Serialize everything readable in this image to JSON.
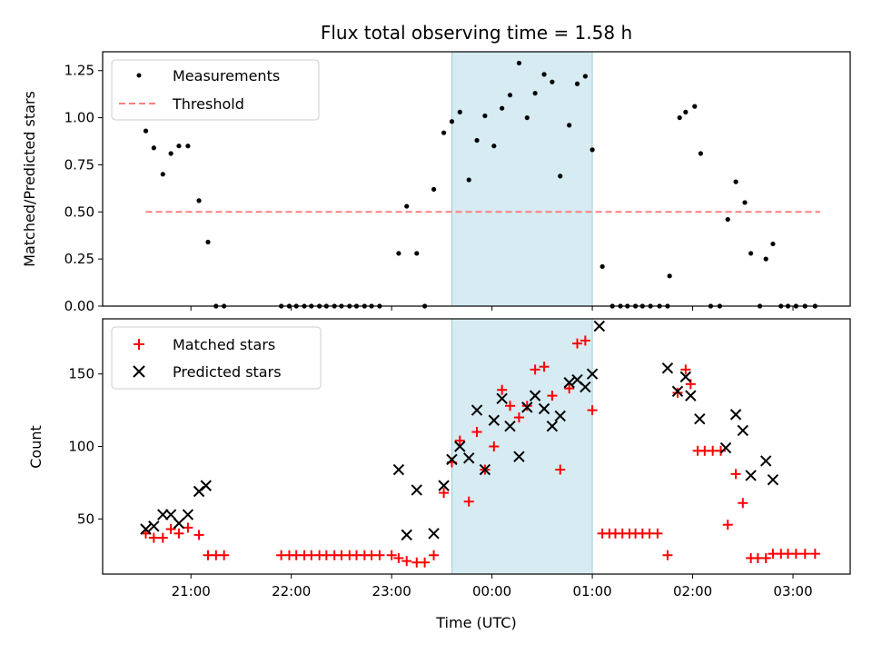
{
  "chart_data": [
    {
      "type": "scatter",
      "title": "Flux total observing time = 1.58 h",
      "xlabel": "",
      "ylabel": "Matched/Predicted stars",
      "ylim": [
        0,
        1.35
      ],
      "xlim": [
        20.12,
        27.57
      ],
      "yticks": [
        "0.00",
        "0.25",
        "0.50",
        "0.75",
        "1.00",
        "1.25"
      ],
      "legend": {
        "placement": "top-left",
        "entries": [
          "Measurements",
          "Threshold"
        ]
      },
      "shaded_interval": [
        23.6,
        25.0
      ],
      "threshold": {
        "y": 0.5,
        "x": [
          20.55,
          27.27
        ],
        "color": "#ff7f7f"
      },
      "series": [
        {
          "name": "Measurements",
          "color": "#000000",
          "points": [
            [
              20.55,
              0.93
            ],
            [
              20.63,
              0.84
            ],
            [
              20.72,
              0.7
            ],
            [
              20.8,
              0.81
            ],
            [
              20.88,
              0.85
            ],
            [
              20.97,
              0.85
            ],
            [
              21.08,
              0.56
            ],
            [
              21.17,
              0.34
            ],
            [
              21.25,
              0
            ],
            [
              21.33,
              0
            ],
            [
              21.9,
              0
            ],
            [
              21.98,
              0
            ],
            [
              22.05,
              0
            ],
            [
              22.13,
              0
            ],
            [
              22.2,
              0
            ],
            [
              22.28,
              0
            ],
            [
              22.35,
              0
            ],
            [
              22.43,
              0
            ],
            [
              22.5,
              0
            ],
            [
              22.58,
              0
            ],
            [
              22.65,
              0
            ],
            [
              22.73,
              0
            ],
            [
              22.8,
              0
            ],
            [
              22.88,
              0
            ],
            [
              23.07,
              0.28
            ],
            [
              23.15,
              0.53
            ],
            [
              23.25,
              0.28
            ],
            [
              23.33,
              0
            ],
            [
              23.42,
              0.62
            ],
            [
              23.52,
              0.92
            ],
            [
              23.6,
              0.98
            ],
            [
              23.68,
              1.03
            ],
            [
              23.77,
              0.67
            ],
            [
              23.85,
              0.88
            ],
            [
              23.93,
              1.01
            ],
            [
              24.02,
              0.85
            ],
            [
              24.1,
              1.05
            ],
            [
              24.18,
              1.12
            ],
            [
              24.27,
              1.29
            ],
            [
              24.35,
              1.0
            ],
            [
              24.43,
              1.13
            ],
            [
              24.52,
              1.23
            ],
            [
              24.6,
              1.19
            ],
            [
              24.68,
              0.69
            ],
            [
              24.77,
              0.96
            ],
            [
              24.85,
              1.18
            ],
            [
              24.93,
              1.22
            ],
            [
              25.0,
              0.83
            ],
            [
              25.1,
              0.21
            ],
            [
              25.2,
              0
            ],
            [
              25.28,
              0
            ],
            [
              25.35,
              0
            ],
            [
              25.43,
              0
            ],
            [
              25.5,
              0
            ],
            [
              25.58,
              0
            ],
            [
              25.67,
              0
            ],
            [
              25.75,
              0
            ],
            [
              25.77,
              0.16
            ],
            [
              25.87,
              1.0
            ],
            [
              25.93,
              1.03
            ],
            [
              26.02,
              1.06
            ],
            [
              26.08,
              0.81
            ],
            [
              26.18,
              0
            ],
            [
              26.27,
              0
            ],
            [
              26.35,
              0.46
            ],
            [
              26.43,
              0.66
            ],
            [
              26.52,
              0.55
            ],
            [
              26.58,
              0.28
            ],
            [
              26.67,
              0
            ],
            [
              26.73,
              0.25
            ],
            [
              26.8,
              0.33
            ],
            [
              26.88,
              0
            ],
            [
              26.95,
              0
            ],
            [
              27.03,
              0
            ],
            [
              27.12,
              0
            ],
            [
              27.22,
              0
            ]
          ]
        }
      ]
    },
    {
      "type": "scatter",
      "title": "",
      "xlabel": "Time (UTC)",
      "ylabel": "Count",
      "ylim": [
        12,
        188
      ],
      "xlim": [
        20.12,
        27.57
      ],
      "yticks": [
        "50",
        "100",
        "150"
      ],
      "xticks": [
        "21:00",
        "22:00",
        "23:00",
        "00:00",
        "01:00",
        "02:00",
        "03:00"
      ],
      "legend": {
        "placement": "top-left",
        "entries": [
          "Matched stars",
          "Predicted stars"
        ]
      },
      "shaded_interval": [
        23.6,
        25.0
      ],
      "series": [
        {
          "name": "Matched stars",
          "marker": "+",
          "color": "#ff0000",
          "points": [
            [
              20.55,
              40
            ],
            [
              20.63,
              37
            ],
            [
              20.72,
              37
            ],
            [
              20.8,
              43
            ],
            [
              20.88,
              40
            ],
            [
              20.97,
              44
            ],
            [
              21.08,
              39
            ],
            [
              21.17,
              25
            ],
            [
              21.25,
              25
            ],
            [
              21.33,
              25
            ],
            [
              21.9,
              25
            ],
            [
              21.98,
              25
            ],
            [
              22.05,
              25
            ],
            [
              22.13,
              25
            ],
            [
              22.2,
              25
            ],
            [
              22.28,
              25
            ],
            [
              22.35,
              25
            ],
            [
              22.43,
              25
            ],
            [
              22.5,
              25
            ],
            [
              22.58,
              25
            ],
            [
              22.65,
              25
            ],
            [
              22.73,
              25
            ],
            [
              22.8,
              25
            ],
            [
              22.88,
              25
            ],
            [
              23.0,
              25
            ],
            [
              23.07,
              23
            ],
            [
              23.15,
              21
            ],
            [
              23.25,
              20
            ],
            [
              23.33,
              20
            ],
            [
              23.42,
              25
            ],
            [
              23.52,
              68
            ],
            [
              23.6,
              89
            ],
            [
              23.68,
              104
            ],
            [
              23.77,
              62
            ],
            [
              23.85,
              110
            ],
            [
              23.93,
              84
            ],
            [
              24.02,
              100
            ],
            [
              24.1,
              139
            ],
            [
              24.18,
              128
            ],
            [
              24.27,
              120
            ],
            [
              24.35,
              128
            ],
            [
              24.43,
              153
            ],
            [
              24.52,
              155
            ],
            [
              24.6,
              135
            ],
            [
              24.68,
              84
            ],
            [
              24.77,
              140
            ],
            [
              24.85,
              171
            ],
            [
              24.93,
              173
            ],
            [
              25.0,
              125
            ],
            [
              25.1,
              40
            ],
            [
              25.17,
              40
            ],
            [
              25.23,
              40
            ],
            [
              25.3,
              40
            ],
            [
              25.37,
              40
            ],
            [
              25.43,
              40
            ],
            [
              25.5,
              40
            ],
            [
              25.57,
              40
            ],
            [
              25.65,
              40
            ],
            [
              25.75,
              25
            ],
            [
              25.85,
              137
            ],
            [
              25.93,
              153
            ],
            [
              25.98,
              143
            ],
            [
              26.05,
              97
            ],
            [
              26.12,
              97
            ],
            [
              26.2,
              97
            ],
            [
              26.28,
              97
            ],
            [
              26.35,
              46
            ],
            [
              26.43,
              81
            ],
            [
              26.5,
              61
            ],
            [
              26.58,
              23
            ],
            [
              26.65,
              23
            ],
            [
              26.73,
              23
            ],
            [
              26.8,
              26
            ],
            [
              26.88,
              26
            ],
            [
              26.95,
              26
            ],
            [
              27.03,
              26
            ],
            [
              27.12,
              26
            ],
            [
              27.22,
              26
            ]
          ]
        },
        {
          "name": "Predicted stars",
          "marker": "x",
          "color": "#000000",
          "points": [
            [
              20.55,
              43
            ],
            [
              20.63,
              45
            ],
            [
              20.72,
              53
            ],
            [
              20.8,
              53
            ],
            [
              20.88,
              47
            ],
            [
              20.97,
              53
            ],
            [
              21.08,
              69
            ],
            [
              21.15,
              73
            ],
            [
              23.07,
              84
            ],
            [
              23.15,
              39
            ],
            [
              23.25,
              70
            ],
            [
              23.42,
              40
            ],
            [
              23.52,
              73
            ],
            [
              23.6,
              91
            ],
            [
              23.68,
              100
            ],
            [
              23.77,
              92
            ],
            [
              23.85,
              125
            ],
            [
              23.93,
              84
            ],
            [
              24.02,
              118
            ],
            [
              24.1,
              133
            ],
            [
              24.18,
              114
            ],
            [
              24.27,
              93
            ],
            [
              24.35,
              127
            ],
            [
              24.43,
              135
            ],
            [
              24.52,
              126
            ],
            [
              24.6,
              114
            ],
            [
              24.68,
              121
            ],
            [
              24.77,
              144
            ],
            [
              24.85,
              146
            ],
            [
              24.93,
              141
            ],
            [
              25.0,
              150
            ],
            [
              25.07,
              183
            ],
            [
              25.75,
              154
            ],
            [
              25.85,
              138
            ],
            [
              25.93,
              148
            ],
            [
              25.98,
              135
            ],
            [
              26.07,
              119
            ],
            [
              26.33,
              99
            ],
            [
              26.43,
              122
            ],
            [
              26.5,
              111
            ],
            [
              26.58,
              80
            ],
            [
              26.73,
              90
            ],
            [
              26.8,
              77
            ]
          ]
        }
      ]
    }
  ]
}
